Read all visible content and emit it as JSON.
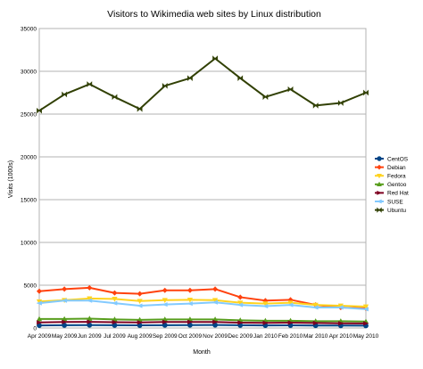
{
  "chart_data": {
    "type": "line",
    "title": "Visitors to Wikimedia web sites by Linux distribution",
    "xlabel": "Month",
    "ylabel": "Visits (1000s)",
    "ylim": [
      0,
      35000
    ],
    "yticks": [
      0,
      5000,
      10000,
      15000,
      20000,
      25000,
      30000,
      35000
    ],
    "grid": "horizontal",
    "legend_position": "right",
    "categories": [
      "Apr 2009",
      "May 2009",
      "Jun 2009",
      "Jul 2009",
      "Aug 2009",
      "Sep 2009",
      "Oct 2009",
      "Nov 2009",
      "Dec 2009",
      "Jan 2010",
      "Feb 2010",
      "Mar 2010",
      "Apr 2010",
      "May 2010"
    ],
    "series": [
      {
        "name": "CentOS",
        "color": "#004586",
        "marker": "circle",
        "values": [
          300,
          320,
          340,
          320,
          310,
          330,
          340,
          350,
          320,
          300,
          310,
          290,
          280,
          270
        ]
      },
      {
        "name": "Debian",
        "color": "#ff420e",
        "marker": "diamond",
        "values": [
          4300,
          4550,
          4700,
          4100,
          4000,
          4400,
          4400,
          4550,
          3600,
          3200,
          3300,
          2700,
          2400,
          2300
        ]
      },
      {
        "name": "Fedora",
        "color": "#ffd320",
        "marker": "triangle-down",
        "values": [
          3100,
          3250,
          3450,
          3400,
          3150,
          3250,
          3300,
          3250,
          2950,
          2850,
          2950,
          2700,
          2600,
          2500
        ]
      },
      {
        "name": "Gentoo",
        "color": "#579d1c",
        "marker": "triangle-up",
        "values": [
          1050,
          1050,
          1100,
          1000,
          950,
          1000,
          1000,
          1000,
          900,
          850,
          850,
          800,
          800,
          750
        ]
      },
      {
        "name": "Red Hat",
        "color": "#7e0021",
        "marker": "right-arrow",
        "values": [
          650,
          700,
          720,
          680,
          650,
          700,
          700,
          700,
          630,
          600,
          620,
          580,
          550,
          530
        ]
      },
      {
        "name": "SUSE",
        "color": "#83caff",
        "marker": "triangle-left",
        "values": [
          2900,
          3200,
          3200,
          2900,
          2600,
          2750,
          2850,
          3000,
          2700,
          2550,
          2700,
          2400,
          2400,
          2200
        ]
      },
      {
        "name": "Ubuntu",
        "color": "#314004",
        "marker": "bowtie",
        "values": [
          25400,
          27300,
          28500,
          27000,
          25600,
          28300,
          29200,
          31500,
          29200,
          27000,
          27900,
          26000,
          26300,
          27500
        ]
      }
    ]
  }
}
